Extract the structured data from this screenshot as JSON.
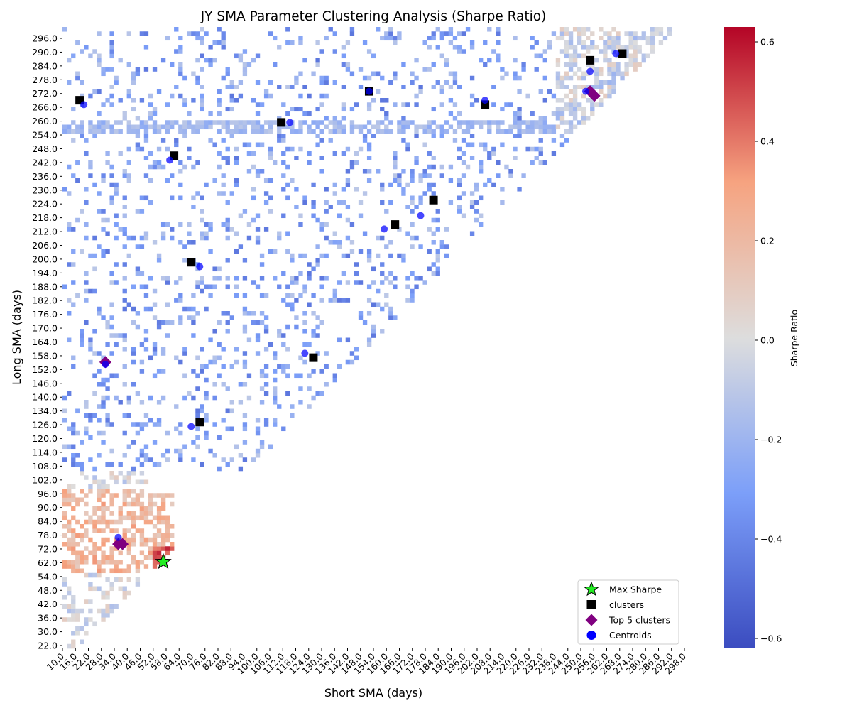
{
  "chart_data": {
    "type": "heatmap",
    "title": "JY SMA Parameter Clustering Analysis (Sharpe Ratio)",
    "xlabel": "Short SMA (days)",
    "ylabel": "Long SMA (days)",
    "colorbar_label": "Sharpe Ratio",
    "colormap": "coolwarm",
    "vmin": -0.62,
    "vmax": 0.63,
    "colorbar_ticks": [
      "−0.6",
      "−0.4",
      "−0.2",
      "0.0",
      "0.2",
      "0.4",
      "0.6"
    ],
    "colorbar_tick_values": [
      -0.6,
      -0.4,
      -0.2,
      0.0,
      0.2,
      0.4,
      0.6
    ],
    "x_range": [
      10,
      300
    ],
    "y_range": [
      20,
      300
    ],
    "x_tick_labels": [
      "10.0",
      "16.0",
      "22.0",
      "28.0",
      "34.0",
      "40.0",
      "46.0",
      "52.0",
      "58.0",
      "64.0",
      "70.0",
      "76.0",
      "82.0",
      "88.0",
      "94.0",
      "100.0",
      "106.0",
      "112.0",
      "118.0",
      "124.0",
      "130.0",
      "136.0",
      "142.0",
      "148.0",
      "154.0",
      "160.0",
      "166.0",
      "172.0",
      "178.0",
      "184.0",
      "190.0",
      "196.0",
      "202.0",
      "208.0",
      "214.0",
      "220.0",
      "226.0",
      "232.0",
      "238.0",
      "244.0",
      "250.0",
      "256.0",
      "262.0",
      "268.0",
      "274.0",
      "280.0",
      "286.0",
      "292.0",
      "298.0"
    ],
    "y_tick_labels": [
      "296.0",
      "290.0",
      "284.0",
      "278.0",
      "272.0",
      "266.0",
      "260.0",
      "254.0",
      "248.0",
      "242.0",
      "236.0",
      "230.0",
      "224.0",
      "218.0",
      "212.0",
      "206.0",
      "200.0",
      "194.0",
      "188.0",
      "182.0",
      "176.0",
      "170.0",
      "164.0",
      "158.0",
      "152.0",
      "146.0",
      "140.0",
      "134.0",
      "126.0",
      "120.0",
      "114.0",
      "108.0",
      "102.0",
      "96.0",
      "90.0",
      "84.0",
      "78.0",
      "72.0",
      "62.0",
      "54.0",
      "48.0",
      "42.0",
      "36.0",
      "30.0",
      "22.0"
    ],
    "legend": {
      "position": "lower-right",
      "entries": [
        {
          "label": "Max Sharpe",
          "marker": "star",
          "color": "#22ee22"
        },
        {
          "label": "clusters",
          "marker": "square",
          "color": "#000000"
        },
        {
          "label": "Top 5 clusters",
          "marker": "diamond",
          "color": "#800080"
        },
        {
          "label": "Centroids",
          "marker": "circle",
          "color": "#0000ff"
        }
      ]
    },
    "max_sharpe": {
      "short": 57,
      "long": 59
    },
    "clusters": [
      {
        "short": 18,
        "long": 267
      },
      {
        "short": 62,
        "long": 242
      },
      {
        "short": 112,
        "long": 257
      },
      {
        "short": 153,
        "long": 271
      },
      {
        "short": 207,
        "long": 265
      },
      {
        "short": 256,
        "long": 285
      },
      {
        "short": 271,
        "long": 288
      },
      {
        "short": 183,
        "long": 222
      },
      {
        "short": 165,
        "long": 211
      },
      {
        "short": 70,
        "long": 194
      },
      {
        "short": 127,
        "long": 151
      },
      {
        "short": 74,
        "long": 122
      }
    ],
    "top5_clusters": [
      {
        "short": 30,
        "long": 149
      },
      {
        "short": 36,
        "long": 67
      },
      {
        "short": 38,
        "long": 67
      },
      {
        "short": 256,
        "long": 271
      },
      {
        "short": 258,
        "long": 269
      }
    ],
    "centroids": [
      {
        "short": 20,
        "long": 265
      },
      {
        "short": 60,
        "long": 240
      },
      {
        "short": 116,
        "long": 257
      },
      {
        "short": 153,
        "long": 271
      },
      {
        "short": 207,
        "long": 267
      },
      {
        "short": 256,
        "long": 280
      },
      {
        "short": 254,
        "long": 271
      },
      {
        "short": 268,
        "long": 288
      },
      {
        "short": 177,
        "long": 215
      },
      {
        "short": 160,
        "long": 209
      },
      {
        "short": 74,
        "long": 192
      },
      {
        "short": 123,
        "long": 153
      },
      {
        "short": 70,
        "long": 120
      },
      {
        "short": 30,
        "long": 148
      },
      {
        "short": 36,
        "long": 70
      }
    ],
    "regions": [
      {
        "x": [
          10,
          50
        ],
        "y": [
          20,
          300
        ],
        "base": -0.02,
        "spread": 0.12,
        "density": 0.35
      },
      {
        "x": [
          10,
          62
        ],
        "y": [
          54,
          92
        ],
        "base": 0.22,
        "spread": 0.12,
        "density": 0.55
      },
      {
        "x": [
          52,
          64
        ],
        "y": [
          56,
          66
        ],
        "base": 0.48,
        "spread": 0.1,
        "density": 0.8
      },
      {
        "x": [
          10,
          300
        ],
        "y": [
          100,
          300
        ],
        "base": -0.28,
        "spread": 0.18,
        "density": 0.16
      },
      {
        "x": [
          10,
          250
        ],
        "y": [
          252,
          258
        ],
        "base": -0.18,
        "spread": 0.08,
        "density": 0.7
      },
      {
        "x": [
          248,
          270
        ],
        "y": [
          250,
          290
        ],
        "base": 0.36,
        "spread": 0.14,
        "density": 0.82
      },
      {
        "x": [
          240,
          300
        ],
        "y": [
          250,
          300
        ],
        "base": -0.05,
        "spread": 0.15,
        "density": 0.55
      }
    ]
  }
}
